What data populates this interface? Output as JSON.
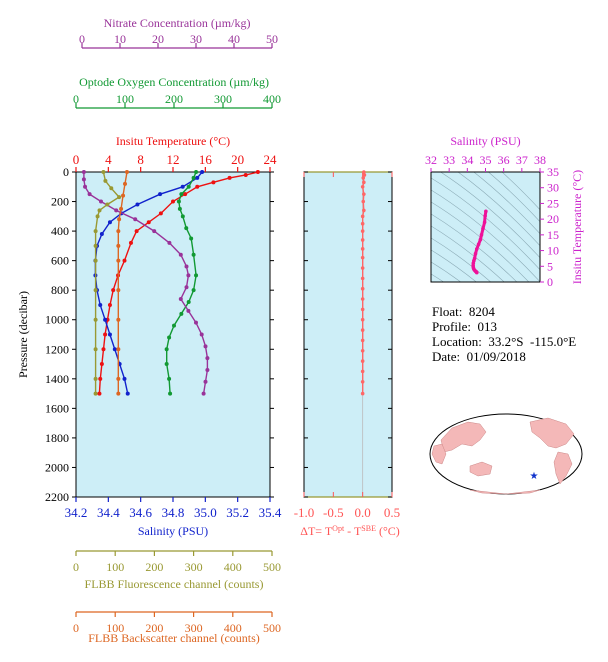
{
  "chart_data": [
    {
      "type": "line",
      "title": "",
      "y_axis": {
        "label": "Pressure (decibar)",
        "range": [
          0,
          2200
        ],
        "ticks": [
          0,
          200,
          400,
          600,
          800,
          1000,
          1200,
          1400,
          1600,
          1800,
          2000,
          2200
        ],
        "inverted": true
      },
      "axes": {
        "nitrate": {
          "label": "Nitrate Concentration (µm/kg)",
          "range": [
            0,
            50
          ],
          "ticks": [
            "0",
            "10",
            "20",
            "30",
            "40",
            "50"
          ],
          "color": "#993399"
        },
        "oxygen": {
          "label": "Optode Oxygen Concentration (µm/kg)",
          "range": [
            0,
            400
          ],
          "ticks": [
            "0",
            "100",
            "200",
            "300",
            "400"
          ],
          "color": "#119933"
        },
        "temperature": {
          "label": "Insitu Temperature (°C)",
          "range": [
            0,
            24
          ],
          "ticks": [
            "0",
            "4",
            "8",
            "12",
            "16",
            "20",
            "24"
          ],
          "color": "#ee1111"
        },
        "salinity": {
          "label": "Salinity (PSU)",
          "range": [
            34.2,
            35.4
          ],
          "ticks": [
            "34.2",
            "34.4",
            "34.6",
            "34.8",
            "35.0",
            "35.2",
            "35.4"
          ],
          "color": "#1122cc"
        },
        "fluorescence": {
          "label": "FLBB Fluorescence channel (counts)",
          "range": [
            0,
            500
          ],
          "ticks": [
            "0",
            "100",
            "200",
            "300",
            "400",
            "500"
          ],
          "color": "#999933"
        },
        "backscatter": {
          "label": "FLBB Backscatter channel (counts)",
          "range": [
            0,
            500
          ],
          "ticks": [
            "0",
            "100",
            "200",
            "300",
            "400",
            "500"
          ],
          "color": "#dd6622"
        }
      },
      "series": [
        {
          "axis": "temperature",
          "color": "#ee1111",
          "points": [
            [
              22.5,
              0
            ],
            [
              21,
              20
            ],
            [
              19,
              40
            ],
            [
              17,
              70
            ],
            [
              15,
              100
            ],
            [
              13.5,
              150
            ],
            [
              12,
              200
            ],
            [
              10.5,
              280
            ],
            [
              9,
              340
            ],
            [
              7.5,
              400
            ],
            [
              6.8,
              480
            ],
            [
              6,
              600
            ],
            [
              5.2,
              700
            ],
            [
              4.6,
              800
            ],
            [
              4.2,
              900
            ],
            [
              3.9,
              1000
            ],
            [
              3.6,
              1100
            ],
            [
              3.4,
              1200
            ],
            [
              3.2,
              1300
            ],
            [
              3.0,
              1400
            ],
            [
              2.9,
              1500
            ]
          ]
        },
        {
          "axis": "salinity",
          "color": "#1122cc",
          "points": [
            [
              34.98,
              0
            ],
            [
              34.95,
              40
            ],
            [
              34.86,
              100
            ],
            [
              34.72,
              150
            ],
            [
              34.58,
              220
            ],
            [
              34.48,
              280
            ],
            [
              34.41,
              340
            ],
            [
              34.36,
              420
            ],
            [
              34.33,
              500
            ],
            [
              34.32,
              600
            ],
            [
              34.32,
              700
            ],
            [
              34.33,
              800
            ],
            [
              34.35,
              900
            ],
            [
              34.38,
              1000
            ],
            [
              34.41,
              1100
            ],
            [
              34.44,
              1200
            ],
            [
              34.47,
              1300
            ],
            [
              34.5,
              1400
            ],
            [
              34.52,
              1500
            ]
          ]
        },
        {
          "axis": "oxygen",
          "color": "#119933",
          "points": [
            [
              245,
              0
            ],
            [
              240,
              40
            ],
            [
              230,
              100
            ],
            [
              215,
              150
            ],
            [
              210,
              200
            ],
            [
              212,
              250
            ],
            [
              218,
              300
            ],
            [
              225,
              380
            ],
            [
              235,
              450
            ],
            [
              240,
              560
            ],
            [
              245,
              700
            ],
            [
              240,
              800
            ],
            [
              230,
              880
            ],
            [
              215,
              960
            ],
            [
              200,
              1040
            ],
            [
              190,
              1120
            ],
            [
              185,
              1200
            ],
            [
              185,
              1300
            ],
            [
              190,
              1400
            ],
            [
              192,
              1500
            ]
          ]
        },
        {
          "axis": "nitrate",
          "color": "#993399",
          "points": [
            [
              0.5,
              0
            ],
            [
              0.5,
              50
            ],
            [
              0.8,
              100
            ],
            [
              2,
              150
            ],
            [
              5,
              200
            ],
            [
              9,
              260
            ],
            [
              14,
              320
            ],
            [
              19,
              400
            ],
            [
              23,
              480
            ],
            [
              26,
              560
            ],
            [
              27.5,
              640
            ],
            [
              28,
              700
            ],
            [
              27.5,
              780
            ],
            [
              26,
              860
            ],
            [
              28,
              940
            ],
            [
              30,
              1020
            ],
            [
              31.5,
              1100
            ],
            [
              32.5,
              1180
            ],
            [
              33,
              1260
            ],
            [
              33,
              1340
            ],
            [
              32.5,
              1420
            ],
            [
              32,
              1500
            ]
          ]
        },
        {
          "axis": "fluorescence",
          "color": "#999933",
          "points": [
            [
              70,
              0
            ],
            [
              75,
              60
            ],
            [
              90,
              110
            ],
            [
              110,
              170
            ],
            [
              80,
              220
            ],
            [
              60,
              260
            ],
            [
              55,
              300
            ],
            [
              50,
              400
            ],
            [
              50,
              500
            ],
            [
              50,
              600
            ],
            [
              50,
              800
            ],
            [
              50,
              1000
            ],
            [
              50,
              1200
            ],
            [
              50,
              1400
            ],
            [
              50,
              1500
            ]
          ]
        },
        {
          "axis": "backscatter",
          "color": "#dd6622",
          "points": [
            [
              130,
              0
            ],
            [
              125,
              80
            ],
            [
              120,
              160
            ],
            [
              115,
              250
            ],
            [
              110,
              320
            ],
            [
              108,
              400
            ],
            [
              108,
              500
            ],
            [
              108,
              600
            ],
            [
              108,
              800
            ],
            [
              108,
              1000
            ],
            [
              108,
              1200
            ],
            [
              108,
              1400
            ],
            [
              108,
              1500
            ]
          ]
        }
      ]
    },
    {
      "type": "line",
      "title": "",
      "xlabel": "ΔT= T^Opt - T^SBE (°C)",
      "xlim": [
        -1.0,
        0.5
      ],
      "x_ticks": [
        "-1.0",
        "-0.5",
        "0.0",
        "0.5"
      ],
      "ylim": [
        0,
        2200
      ],
      "series": [
        {
          "color": "#ff6666",
          "points": [
            [
              0.02,
              0
            ],
            [
              0.03,
              20
            ],
            [
              0.01,
              40
            ],
            [
              0.02,
              70
            ],
            [
              0.0,
              100
            ],
            [
              0.02,
              150
            ],
            [
              0.01,
              200
            ],
            [
              0.02,
              260
            ],
            [
              0.0,
              300
            ],
            [
              0.0,
              350
            ],
            [
              0.0,
              400
            ],
            [
              0.0,
              460
            ],
            [
              0.0,
              520
            ],
            [
              0.0,
              580
            ],
            [
              0.0,
              650
            ],
            [
              0.0,
              720
            ],
            [
              0.0,
              790
            ],
            [
              0.0,
              860
            ],
            [
              0.0,
              930
            ],
            [
              0.0,
              1000
            ],
            [
              0.0,
              1070
            ],
            [
              0.0,
              1140
            ],
            [
              0.0,
              1210
            ],
            [
              0.0,
              1280
            ],
            [
              0.0,
              1350
            ],
            [
              0.0,
              1420
            ],
            [
              0.0,
              1500
            ]
          ]
        }
      ]
    },
    {
      "type": "scatter",
      "title": "",
      "xlabel": "Salinity (PSU)",
      "ylabel": "Insitu Temperature (°C)",
      "xlim": [
        32,
        38
      ],
      "ylim": [
        0,
        35
      ],
      "x_ticks": [
        "32",
        "33",
        "34",
        "35",
        "36",
        "37",
        "38"
      ],
      "y_ticks": [
        "0",
        "5",
        "10",
        "15",
        "20",
        "25",
        "30",
        "35"
      ],
      "series": [
        {
          "color": "#ee1199",
          "points": [
            [
              35.02,
              22.5
            ],
            [
              34.98,
              21
            ],
            [
              34.95,
              19
            ],
            [
              34.86,
              17
            ],
            [
              34.78,
              15
            ],
            [
              34.72,
              13.5
            ],
            [
              34.62,
              12
            ],
            [
              34.52,
              10.5
            ],
            [
              34.45,
              9
            ],
            [
              34.4,
              7.5
            ],
            [
              34.36,
              6.8
            ],
            [
              34.33,
              6
            ],
            [
              34.32,
              5.2
            ],
            [
              34.33,
              4.6
            ],
            [
              34.35,
              4.2
            ],
            [
              34.38,
              3.9
            ],
            [
              34.42,
              3.6
            ],
            [
              34.46,
              3.4
            ],
            [
              34.5,
              3.2
            ],
            [
              34.52,
              3.0
            ]
          ]
        }
      ]
    }
  ],
  "info": {
    "float_label": "Float:",
    "float_value": "8204",
    "profile_label": "Profile:",
    "profile_value": "013",
    "location_label": "Location:",
    "location_value": "33.2°S  -115.0°E",
    "date_label": "Date:",
    "date_value": "01/09/2018"
  },
  "map": {
    "marker": "★",
    "marker_color": "#1133cc",
    "ocean_color": "#ffffff",
    "land_color": "#f4b8b8"
  }
}
